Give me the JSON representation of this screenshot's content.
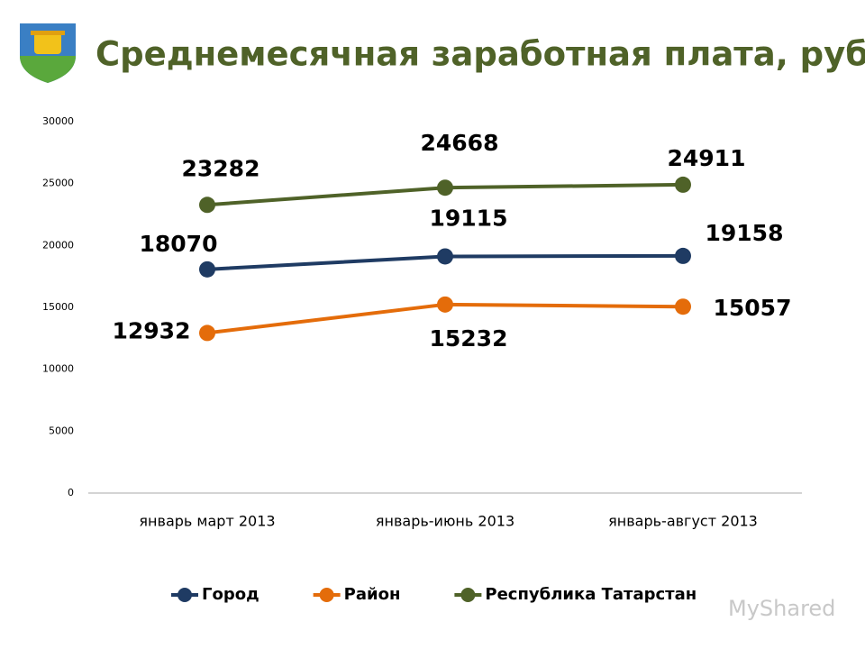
{
  "chart_data": {
    "type": "line",
    "title": "Среднемесячная заработная плата, руб.",
    "categories": [
      "январь март 2013",
      "январь-июнь 2013",
      "январь-август 2013"
    ],
    "series": [
      {
        "name": "Город",
        "color": "#1f3b63",
        "values": [
          18070,
          19115,
          19158
        ]
      },
      {
        "name": "Район",
        "color": "#e46c0a",
        "values": [
          12932,
          15232,
          15057
        ]
      },
      {
        "name": "Республика Татарстан",
        "color": "#4f6228",
        "values": [
          23282,
          24668,
          24911
        ]
      }
    ],
    "ylim": [
      0,
      30000
    ],
    "yticks": [
      0,
      5000,
      10000,
      15000,
      20000,
      25000,
      30000
    ],
    "grid": false,
    "legend": "bottom"
  },
  "watermark": "MyShared"
}
